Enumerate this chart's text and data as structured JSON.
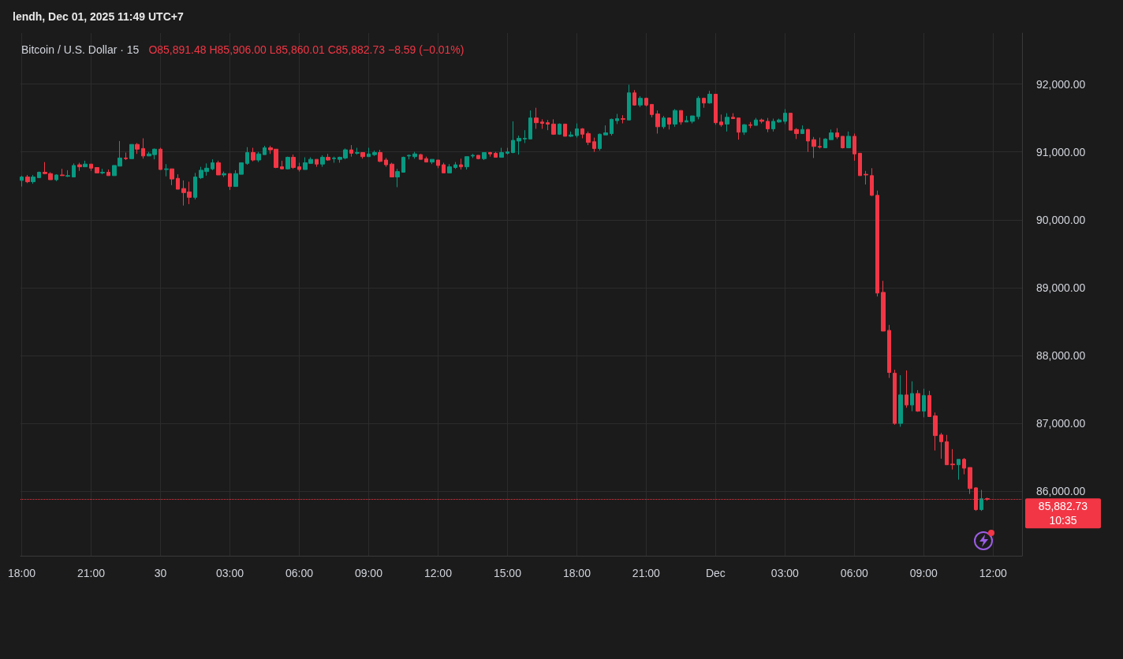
{
  "chart_data": {
    "type": "candlestick",
    "title": "lendh, Dec 01, 2025 11:49 UTC+7",
    "subtitle": "Bitcoin / U.S. Dollar · 15",
    "annotations": [
      "O85,891.48 H85,906.00 L85,860.01 C85,882.73 −8.59 (−0.01%)",
      "10:35"
    ],
    "x": [
      "2025-11-29T18:00",
      "2025-11-29T18:15",
      "2025-11-29T18:30",
      "2025-11-29T18:45",
      "2025-11-29T19:00",
      "2025-11-29T19:15",
      "2025-11-29T19:30",
      "2025-11-29T19:45",
      "2025-11-29T20:00",
      "2025-11-29T20:15",
      "2025-11-29T20:30",
      "2025-11-29T20:45",
      "2025-11-29T21:00",
      "2025-11-29T21:15",
      "2025-11-29T21:30",
      "2025-11-29T21:45",
      "2025-11-29T22:00",
      "2025-11-29T22:15",
      "2025-11-29T22:30",
      "2025-11-29T22:45",
      "2025-11-29T23:00",
      "2025-11-29T23:15",
      "2025-11-29T23:30",
      "2025-11-29T23:45",
      "2025-11-30T00:00",
      "2025-11-30T00:15",
      "2025-11-30T00:30",
      "2025-11-30T00:45",
      "2025-11-30T01:00",
      "2025-11-30T01:15",
      "2025-11-30T01:30",
      "2025-11-30T01:45",
      "2025-11-30T02:00",
      "2025-11-30T02:15",
      "2025-11-30T02:30",
      "2025-11-30T02:45",
      "2025-11-30T03:00",
      "2025-11-30T03:15",
      "2025-11-30T03:30",
      "2025-11-30T03:45",
      "2025-11-30T04:00",
      "2025-11-30T04:15",
      "2025-11-30T04:30",
      "2025-11-30T04:45",
      "2025-11-30T05:00",
      "2025-11-30T05:15",
      "2025-11-30T05:30",
      "2025-11-30T05:45",
      "2025-11-30T06:00",
      "2025-11-30T06:15",
      "2025-11-30T06:30",
      "2025-11-30T06:45",
      "2025-11-30T07:00",
      "2025-11-30T07:15",
      "2025-11-30T07:30",
      "2025-11-30T07:45",
      "2025-11-30T08:00",
      "2025-11-30T08:15",
      "2025-11-30T08:30",
      "2025-11-30T08:45",
      "2025-11-30T09:00",
      "2025-11-30T09:15",
      "2025-11-30T09:30",
      "2025-11-30T09:45",
      "2025-11-30T10:00",
      "2025-11-30T10:15",
      "2025-11-30T10:30",
      "2025-11-30T10:45",
      "2025-11-30T11:00",
      "2025-11-30T11:15",
      "2025-11-30T11:30",
      "2025-11-30T11:45",
      "2025-11-30T12:00",
      "2025-11-30T12:15",
      "2025-11-30T12:30",
      "2025-11-30T12:45",
      "2025-11-30T13:00",
      "2025-11-30T13:15",
      "2025-11-30T13:30",
      "2025-11-30T13:45",
      "2025-11-30T14:00",
      "2025-11-30T14:15",
      "2025-11-30T14:30",
      "2025-11-30T14:45",
      "2025-11-30T15:00",
      "2025-11-30T15:15",
      "2025-11-30T15:30",
      "2025-11-30T15:45",
      "2025-11-30T16:00",
      "2025-11-30T16:15",
      "2025-11-30T16:30",
      "2025-11-30T16:45",
      "2025-11-30T17:00",
      "2025-11-30T17:15",
      "2025-11-30T17:30",
      "2025-11-30T17:45",
      "2025-11-30T18:00",
      "2025-11-30T18:15",
      "2025-11-30T18:30",
      "2025-11-30T18:45",
      "2025-11-30T19:00",
      "2025-11-30T19:15",
      "2025-11-30T19:30",
      "2025-11-30T19:45",
      "2025-11-30T20:00",
      "2025-11-30T20:15",
      "2025-11-30T20:30",
      "2025-11-30T20:45",
      "2025-11-30T21:00",
      "2025-11-30T21:15",
      "2025-11-30T21:30",
      "2025-11-30T21:45",
      "2025-11-30T22:00",
      "2025-11-30T22:15",
      "2025-11-30T22:30",
      "2025-11-30T22:45",
      "2025-11-30T23:00",
      "2025-11-30T23:15",
      "2025-11-30T23:30",
      "2025-11-30T23:45",
      "2025-12-01T00:00",
      "2025-12-01T00:15",
      "2025-12-01T00:30",
      "2025-12-01T00:45",
      "2025-12-01T01:00",
      "2025-12-01T01:15",
      "2025-12-01T01:30",
      "2025-12-01T01:45",
      "2025-12-01T02:00",
      "2025-12-01T02:15",
      "2025-12-01T02:30",
      "2025-12-01T02:45",
      "2025-12-01T03:00",
      "2025-12-01T03:15",
      "2025-12-01T03:30",
      "2025-12-01T03:45",
      "2025-12-01T04:00",
      "2025-12-01T04:15",
      "2025-12-01T04:30",
      "2025-12-01T04:45",
      "2025-12-01T05:00",
      "2025-12-01T05:15",
      "2025-12-01T05:30",
      "2025-12-01T05:45",
      "2025-12-01T06:00",
      "2025-12-01T06:15",
      "2025-12-01T06:30",
      "2025-12-01T06:45",
      "2025-12-01T07:00",
      "2025-12-01T07:15",
      "2025-12-01T07:30",
      "2025-12-01T07:45",
      "2025-12-01T08:00",
      "2025-12-01T08:15",
      "2025-12-01T08:30",
      "2025-12-01T08:45",
      "2025-12-01T09:00",
      "2025-12-01T09:15",
      "2025-12-01T09:30",
      "2025-12-01T09:45",
      "2025-12-01T10:00",
      "2025-12-01T10:15",
      "2025-12-01T10:30",
      "2025-12-01T10:45",
      "2025-12-01T11:00",
      "2025-12-01T11:15",
      "2025-12-01T11:30",
      "2025-12-01T11:45"
    ],
    "ohlc": [
      [
        90580,
        90650,
        90490,
        90630
      ],
      [
        90630,
        90660,
        90540,
        90560
      ],
      [
        90560,
        90660,
        90530,
        90630
      ],
      [
        90620,
        90710,
        90620,
        90700
      ],
      [
        90700,
        90850,
        90670,
        90680
      ],
      [
        90680,
        90700,
        90590,
        90590
      ],
      [
        90590,
        90670,
        90570,
        90660
      ],
      [
        90660,
        90750,
        90650,
        90650
      ],
      [
        90640,
        90730,
        90630,
        90650
      ],
      [
        90630,
        90830,
        90630,
        90800
      ],
      [
        90810,
        90840,
        90720,
        90780
      ],
      [
        90780,
        90870,
        90780,
        90820
      ],
      [
        90820,
        90820,
        90720,
        90760
      ],
      [
        90770,
        90770,
        90690,
        90690
      ],
      [
        90690,
        90750,
        90670,
        90700
      ],
      [
        90700,
        90740,
        90650,
        90650
      ],
      [
        90650,
        90800,
        90650,
        90800
      ],
      [
        90790,
        91160,
        90790,
        90910
      ],
      [
        90910,
        90990,
        90880,
        90900
      ],
      [
        90900,
        91110,
        90900,
        91110
      ],
      [
        91110,
        91130,
        90970,
        91040
      ],
      [
        91050,
        91200,
        90900,
        90940
      ],
      [
        90940,
        91000,
        90940,
        90970
      ],
      [
        90960,
        91050,
        90890,
        91040
      ],
      [
        91040,
        91060,
        90740,
        90740
      ],
      [
        90740,
        90820,
        90640,
        90750
      ],
      [
        90750,
        90750,
        90510,
        90600
      ],
      [
        90610,
        90670,
        90450,
        90450
      ],
      [
        90460,
        90580,
        90210,
        90400
      ],
      [
        90410,
        90560,
        90230,
        90330
      ],
      [
        90330,
        90690,
        90300,
        90630
      ],
      [
        90620,
        90780,
        90600,
        90730
      ],
      [
        90710,
        90830,
        90650,
        90760
      ],
      [
        90750,
        90890,
        90730,
        90840
      ],
      [
        90840,
        90870,
        90660,
        90660
      ],
      [
        90660,
        90710,
        90630,
        90680
      ],
      [
        90680,
        90680,
        90440,
        90490
      ],
      [
        90490,
        90730,
        90490,
        90680
      ],
      [
        90670,
        90840,
        90670,
        90840
      ],
      [
        90830,
        91070,
        90810,
        90990
      ],
      [
        90990,
        91060,
        90860,
        90880
      ],
      [
        90880,
        91000,
        90850,
        90970
      ],
      [
        90960,
        91090,
        90960,
        91060
      ],
      [
        91060,
        91090,
        90970,
        91030
      ],
      [
        91040,
        91040,
        90760,
        90770
      ],
      [
        90780,
        90870,
        90740,
        90750
      ],
      [
        90750,
        90930,
        90740,
        90920
      ],
      [
        90920,
        90960,
        90750,
        90770
      ],
      [
        90780,
        90840,
        90710,
        90740
      ],
      [
        90740,
        90920,
        90740,
        90840
      ],
      [
        90830,
        90920,
        90830,
        90890
      ],
      [
        90890,
        90890,
        90780,
        90820
      ],
      [
        90820,
        90950,
        90780,
        90920
      ],
      [
        90920,
        90970,
        90870,
        90880
      ],
      [
        90900,
        90930,
        90840,
        90910
      ],
      [
        90890,
        90930,
        90840,
        90920
      ],
      [
        90910,
        91050,
        90890,
        91030
      ],
      [
        91030,
        91100,
        90930,
        90980
      ],
      [
        90980,
        91060,
        90960,
        90990
      ],
      [
        90990,
        90990,
        90900,
        90930
      ],
      [
        90930,
        91060,
        90930,
        90970
      ],
      [
        90960,
        91020,
        90940,
        90990
      ],
      [
        90990,
        91030,
        90850,
        90860
      ],
      [
        90880,
        90910,
        90780,
        90810
      ],
      [
        90820,
        90840,
        90630,
        90630
      ],
      [
        90630,
        90750,
        90480,
        90710
      ],
      [
        90700,
        90930,
        90700,
        90920
      ],
      [
        90940,
        90960,
        90890,
        90950
      ],
      [
        90930,
        91000,
        90900,
        90970
      ],
      [
        90960,
        90970,
        90890,
        90890
      ],
      [
        90900,
        90930,
        90850,
        90850
      ],
      [
        90850,
        90890,
        90820,
        90890
      ],
      [
        90880,
        90880,
        90760,
        90800
      ],
      [
        90810,
        90840,
        90690,
        90690
      ],
      [
        90690,
        90820,
        90690,
        90780
      ],
      [
        90770,
        90850,
        90750,
        90810
      ],
      [
        90810,
        90900,
        90740,
        90780
      ],
      [
        90780,
        90930,
        90740,
        90930
      ],
      [
        90940,
        90970,
        90910,
        90950
      ],
      [
        90950,
        90950,
        90890,
        90900
      ],
      [
        90900,
        90990,
        90880,
        90990
      ],
      [
        90990,
        91000,
        90930,
        90970
      ],
      [
        90980,
        91000,
        90920,
        90920
      ],
      [
        90920,
        91060,
        90920,
        90990
      ],
      [
        90980,
        91060,
        90960,
        91000
      ],
      [
        90990,
        91450,
        90980,
        91170
      ],
      [
        91160,
        91240,
        90960,
        91200
      ],
      [
        91190,
        91320,
        91130,
        91200
      ],
      [
        91190,
        91610,
        91190,
        91500
      ],
      [
        91500,
        91650,
        91340,
        91430
      ],
      [
        91440,
        91480,
        91340,
        91420
      ],
      [
        91430,
        91470,
        91320,
        91410
      ],
      [
        91410,
        91480,
        91250,
        91260
      ],
      [
        91260,
        91420,
        91250,
        91410
      ],
      [
        91410,
        91410,
        91230,
        91230
      ],
      [
        91230,
        91300,
        91220,
        91250
      ],
      [
        91240,
        91420,
        91210,
        91340
      ],
      [
        91340,
        91350,
        91200,
        91260
      ],
      [
        91270,
        91300,
        91100,
        91140
      ],
      [
        91150,
        91210,
        91000,
        91050
      ],
      [
        91050,
        91270,
        91020,
        91260
      ],
      [
        91250,
        91390,
        91250,
        91280
      ],
      [
        91270,
        91490,
        91240,
        91480
      ],
      [
        91460,
        91560,
        91410,
        91490
      ],
      [
        91490,
        91540,
        91420,
        91480
      ],
      [
        91470,
        91990,
        91470,
        91870
      ],
      [
        91870,
        91910,
        91680,
        91690
      ],
      [
        91690,
        91820,
        91660,
        91790
      ],
      [
        91790,
        91800,
        91670,
        91690
      ],
      [
        91700,
        91700,
        91510,
        91550
      ],
      [
        91560,
        91610,
        91270,
        91370
      ],
      [
        91370,
        91530,
        91340,
        91500
      ],
      [
        91500,
        91500,
        91330,
        91410
      ],
      [
        91410,
        91630,
        91370,
        91610
      ],
      [
        91610,
        91610,
        91400,
        91440
      ],
      [
        91440,
        91530,
        91440,
        91460
      ],
      [
        91450,
        91530,
        91420,
        91530
      ],
      [
        91520,
        91820,
        91480,
        91790
      ],
      [
        91790,
        91800,
        91650,
        91720
      ],
      [
        91720,
        91900,
        91710,
        91850
      ],
      [
        91850,
        91850,
        91400,
        91430
      ],
      [
        91440,
        91550,
        91370,
        91400
      ],
      [
        91410,
        91570,
        91300,
        91510
      ],
      [
        91510,
        91570,
        91490,
        91490
      ],
      [
        91500,
        91500,
        91180,
        91290
      ],
      [
        91290,
        91410,
        91250,
        91400
      ],
      [
        91400,
        91440,
        91350,
        91390
      ],
      [
        91390,
        91500,
        91390,
        91470
      ],
      [
        91470,
        91490,
        91420,
        91450
      ],
      [
        91450,
        91500,
        91290,
        91340
      ],
      [
        91340,
        91490,
        91300,
        91450
      ],
      [
        91440,
        91490,
        91430,
        91470
      ],
      [
        91450,
        91630,
        91410,
        91570
      ],
      [
        91570,
        91570,
        91320,
        91320
      ],
      [
        91330,
        91350,
        91190,
        91270
      ],
      [
        91270,
        91390,
        91270,
        91330
      ],
      [
        91330,
        91340,
        91000,
        91160
      ],
      [
        91180,
        91220,
        90910,
        91080
      ],
      [
        91080,
        91210,
        91050,
        91070
      ],
      [
        91060,
        91200,
        91060,
        91190
      ],
      [
        91180,
        91330,
        91180,
        91280
      ],
      [
        91280,
        91350,
        91190,
        91220
      ],
      [
        91230,
        91230,
        91050,
        91060
      ],
      [
        91060,
        91300,
        91060,
        91230
      ],
      [
        91230,
        91270,
        90870,
        90970
      ],
      [
        90980,
        90980,
        90650,
        90650
      ],
      [
        90670,
        90720,
        90520,
        90660
      ],
      [
        90650,
        90760,
        90350,
        90360
      ],
      [
        90360,
        90430,
        88870,
        88920
      ],
      [
        88930,
        89100,
        88360,
        88360
      ],
      [
        88370,
        88450,
        87670,
        87750
      ],
      [
        87740,
        87790,
        86980,
        87000
      ],
      [
        87000,
        87710,
        86950,
        87420
      ],
      [
        87420,
        87780,
        87230,
        87270
      ],
      [
        87270,
        87620,
        87180,
        87440
      ],
      [
        87440,
        87490,
        87170,
        87180
      ],
      [
        87180,
        87510,
        87090,
        87410
      ],
      [
        87410,
        87480,
        87100,
        87100
      ],
      [
        87110,
        87160,
        86600,
        86820
      ],
      [
        86830,
        86860,
        86480,
        86730
      ],
      [
        86730,
        86830,
        86390,
        86390
      ],
      [
        86400,
        86620,
        86320,
        86390
      ],
      [
        86390,
        86470,
        86170,
        86470
      ],
      [
        86470,
        86490,
        86250,
        86340
      ],
      [
        86350,
        86350,
        85960,
        86040
      ],
      [
        86050,
        86060,
        85710,
        85730
      ],
      [
        85730,
        86020,
        85710,
        85890
      ],
      [
        85891.48,
        85906.0,
        85860.01,
        85882.73
      ]
    ],
    "colors": [
      "#089981",
      "#f23645",
      "#089981",
      "#089981",
      "#f23645",
      "#f23645",
      "#089981",
      "#f23645",
      "#089981",
      "#089981",
      "#f23645",
      "#089981",
      "#f23645",
      "#f23645",
      "#089981",
      "#f23645",
      "#089981",
      "#089981",
      "#f23645",
      "#089981",
      "#f23645",
      "#f23645",
      "#089981",
      "#089981",
      "#f23645",
      "#089981",
      "#f23645",
      "#f23645",
      "#f23645",
      "#f23645",
      "#089981",
      "#089981",
      "#089981",
      "#089981",
      "#f23645",
      "#089981",
      "#f23645",
      "#089981",
      "#089981",
      "#089981",
      "#f23645",
      "#089981",
      "#089981",
      "#f23645",
      "#f23645",
      "#f23645",
      "#089981",
      "#f23645",
      "#f23645",
      "#089981",
      "#089981",
      "#f23645",
      "#089981",
      "#f23645",
      "#089981",
      "#089981",
      "#089981",
      "#f23645",
      "#089981",
      "#f23645",
      "#089981",
      "#089981",
      "#f23645",
      "#f23645",
      "#f23645",
      "#089981",
      "#089981",
      "#089981",
      "#089981",
      "#f23645",
      "#f23645",
      "#089981",
      "#f23645",
      "#f23645",
      "#089981",
      "#089981",
      "#f23645",
      "#089981",
      "#089981",
      "#f23645",
      "#089981",
      "#f23645",
      "#f23645",
      "#089981",
      "#089981",
      "#089981",
      "#089981",
      "#089981",
      "#089981",
      "#f23645",
      "#f23645",
      "#f23645",
      "#f23645",
      "#089981",
      "#f23645",
      "#089981",
      "#089981",
      "#f23645",
      "#f23645",
      "#f23645",
      "#089981",
      "#089981",
      "#089981",
      "#089981",
      "#f23645",
      "#089981",
      "#f23645",
      "#089981",
      "#f23645",
      "#f23645",
      "#f23645",
      "#089981",
      "#f23645",
      "#089981",
      "#f23645",
      "#089981",
      "#089981",
      "#089981",
      "#f23645",
      "#089981",
      "#f23645",
      "#f23645",
      "#089981",
      "#f23645",
      "#f23645",
      "#089981",
      "#f23645",
      "#089981",
      "#f23645",
      "#f23645",
      "#089981",
      "#089981",
      "#089981",
      "#f23645",
      "#f23645",
      "#089981",
      "#f23645",
      "#f23645",
      "#f23645",
      "#089981",
      "#089981",
      "#f23645",
      "#f23645",
      "#089981",
      "#f23645",
      "#f23645",
      "#f23645",
      "#f23645",
      "#f23645",
      "#f23645",
      "#f23645",
      "#f23645",
      "#089981",
      "#f23645",
      "#089981",
      "#f23645",
      "#089981",
      "#f23645",
      "#f23645",
      "#f23645",
      "#f23645",
      "#f23645",
      "#089981",
      "#f23645",
      "#f23645",
      "#f23645",
      "#089981",
      "#f23645"
    ],
    "xlim": [
      "2025-11-29T17:57",
      "2025-12-01T13:15"
    ],
    "xticks": [
      {
        "value": "2025-11-29T18:00",
        "label": "18:00"
      },
      {
        "value": "2025-11-29T21:00",
        "label": "21:00"
      },
      {
        "value": "2025-11-30T00:00",
        "label": "30"
      },
      {
        "value": "2025-11-30T03:00",
        "label": "03:00"
      },
      {
        "value": "2025-11-30T06:00",
        "label": "06:00"
      },
      {
        "value": "2025-11-30T09:00",
        "label": "09:00"
      },
      {
        "value": "2025-11-30T12:00",
        "label": "12:00"
      },
      {
        "value": "2025-11-30T15:00",
        "label": "15:00"
      },
      {
        "value": "2025-11-30T18:00",
        "label": "18:00"
      },
      {
        "value": "2025-11-30T21:00",
        "label": "21:00"
      },
      {
        "value": "2025-12-01T00:00",
        "label": "Dec"
      },
      {
        "value": "2025-12-01T03:00",
        "label": "03:00"
      },
      {
        "value": "2025-12-01T06:00",
        "label": "06:00"
      },
      {
        "value": "2025-12-01T09:00",
        "label": "09:00"
      },
      {
        "value": "2025-12-01T12:00",
        "label": "12:00"
      }
    ],
    "ylim": [
      85050,
      92750
    ],
    "yticks": [
      {
        "value": 86000,
        "label": "86,000.00"
      },
      {
        "value": 87000,
        "label": "87,000.00"
      },
      {
        "value": 88000,
        "label": "88,000.00"
      },
      {
        "value": 89000,
        "label": "89,000.00"
      },
      {
        "value": 90000,
        "label": "90,000.00"
      },
      {
        "value": 91000,
        "label": "91,000.00"
      },
      {
        "value": 92000,
        "label": "92,000.00"
      }
    ],
    "grid": true,
    "ref_lines": [
      {
        "axis": "y",
        "value": 85882.73,
        "label": "85,882.73",
        "color": "#f23645",
        "line_style": "dotted"
      }
    ]
  }
}
